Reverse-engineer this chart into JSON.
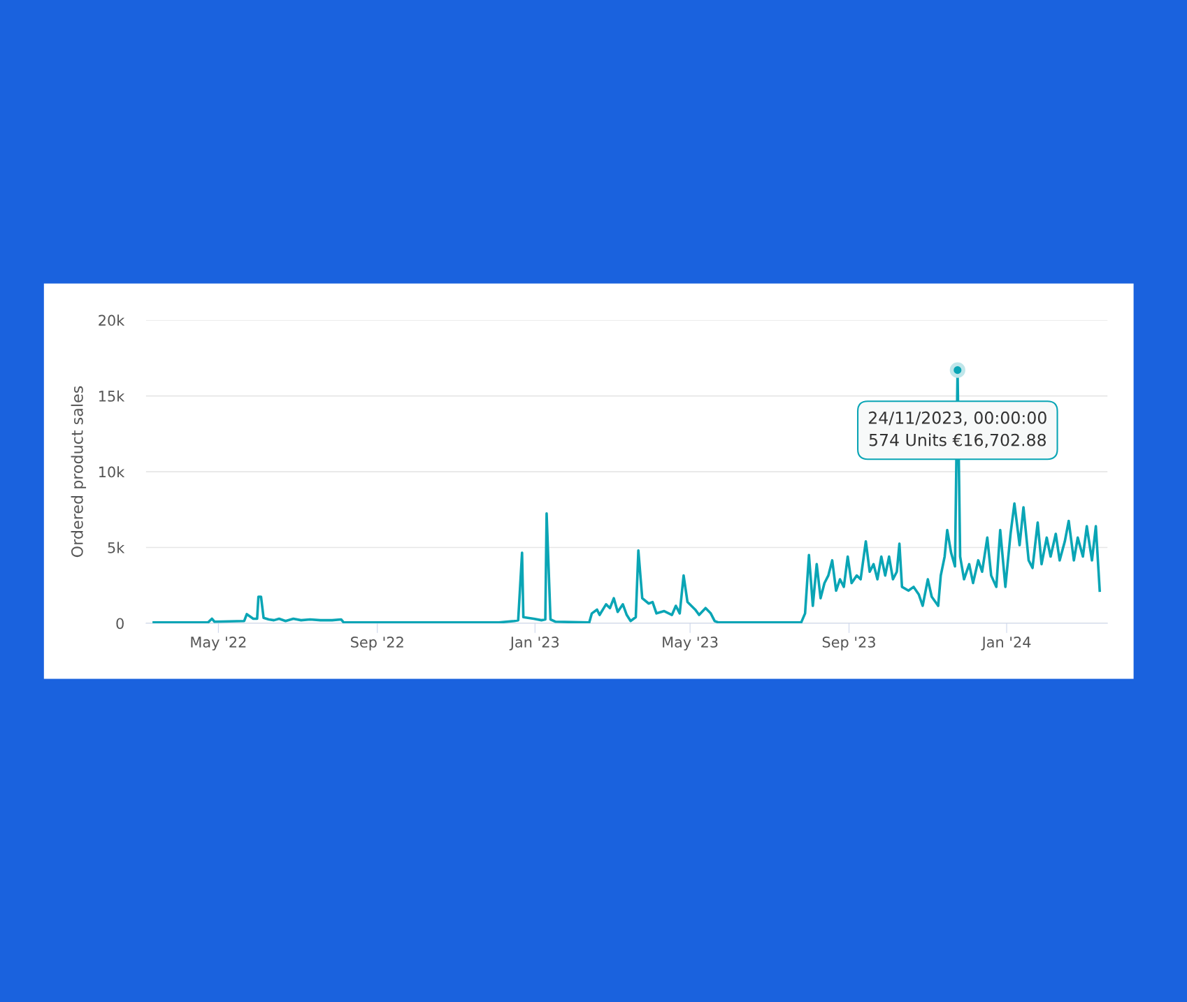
{
  "chart_data": {
    "type": "line",
    "ylabel": "Ordered product sales",
    "x": [
      "2022-03-12",
      "2022-04-23",
      "2022-04-26",
      "2022-04-28",
      "2022-05-21",
      "2022-05-23",
      "2022-05-28",
      "2022-05-31",
      "2022-06-01",
      "2022-06-03",
      "2022-06-05",
      "2022-06-09",
      "2022-06-13",
      "2022-06-17",
      "2022-06-22",
      "2022-06-28",
      "2022-07-04",
      "2022-07-11",
      "2022-07-19",
      "2022-07-28",
      "2022-08-04",
      "2022-08-06",
      "2022-12-04",
      "2022-12-16",
      "2022-12-19",
      "2022-12-22",
      "2022-12-23",
      "2022-12-31",
      "2023-01-06",
      "2023-01-09",
      "2023-01-10",
      "2023-01-13",
      "2023-01-17",
      "2023-02-12",
      "2023-02-14",
      "2023-02-18",
      "2023-02-20",
      "2023-02-25",
      "2023-02-28",
      "2023-03-03",
      "2023-03-06",
      "2023-03-10",
      "2023-03-13",
      "2023-03-16",
      "2023-03-20",
      "2023-03-22",
      "2023-03-25",
      "2023-03-30",
      "2023-04-02",
      "2023-04-05",
      "2023-04-11",
      "2023-04-17",
      "2023-04-20",
      "2023-04-23",
      "2023-04-26",
      "2023-04-29",
      "2023-05-05",
      "2023-05-08",
      "2023-05-13",
      "2023-05-17",
      "2023-05-20",
      "2023-05-23",
      "2023-07-16",
      "2023-07-26",
      "2023-07-29",
      "2023-08-01",
      "2023-08-04",
      "2023-08-07",
      "2023-08-10",
      "2023-08-13",
      "2023-08-16",
      "2023-08-19",
      "2023-08-22",
      "2023-08-25",
      "2023-08-28",
      "2023-08-31",
      "2023-09-03",
      "2023-09-07",
      "2023-09-10",
      "2023-09-14",
      "2023-09-17",
      "2023-09-20",
      "2023-09-23",
      "2023-09-26",
      "2023-09-29",
      "2023-10-02",
      "2023-10-05",
      "2023-10-08",
      "2023-10-10",
      "2023-10-12",
      "2023-10-17",
      "2023-10-21",
      "2023-10-25",
      "2023-10-28",
      "2023-11-01",
      "2023-11-04",
      "2023-11-09",
      "2023-11-11",
      "2023-11-14",
      "2023-11-16",
      "2023-11-19",
      "2023-11-22",
      "2023-11-24",
      "2023-11-26",
      "2023-11-29",
      "2023-12-03",
      "2023-12-06",
      "2023-12-10",
      "2023-12-13",
      "2023-12-17",
      "2023-12-20",
      "2023-12-24",
      "2023-12-27",
      "2023-12-31",
      "2024-01-04",
      "2024-01-07",
      "2024-01-11",
      "2024-01-14",
      "2024-01-18",
      "2024-01-21",
      "2024-01-25",
      "2024-01-28",
      "2024-02-01",
      "2024-02-04",
      "2024-02-08",
      "2024-02-11",
      "2024-02-15",
      "2024-02-18",
      "2024-02-22",
      "2024-02-25",
      "2024-02-29",
      "2024-03-03",
      "2024-03-07",
      "2024-03-10",
      "2024-03-13"
    ],
    "series": [
      {
        "color": "#0aa5b5",
        "values": [
          50,
          50,
          300,
          100,
          150,
          600,
          300,
          300,
          1750,
          1750,
          350,
          250,
          200,
          300,
          150,
          300,
          200,
          250,
          200,
          200,
          250,
          50,
          50,
          150,
          200,
          4650,
          400,
          300,
          200,
          250,
          7250,
          250,
          100,
          50,
          650,
          900,
          550,
          1250,
          1000,
          1650,
          750,
          1250,
          550,
          150,
          400,
          4800,
          1650,
          1300,
          1400,
          650,
          800,
          550,
          1150,
          650,
          3150,
          1400,
          900,
          550,
          1000,
          650,
          150,
          50,
          50,
          50,
          650,
          4500,
          1150,
          3900,
          1650,
          2650,
          3150,
          4150,
          2150,
          2900,
          2400,
          4400,
          2650,
          3150,
          2900,
          5400,
          3400,
          3900,
          2900,
          4400,
          3150,
          4400,
          2900,
          3400,
          5250,
          2400,
          2150,
          2400,
          1900,
          1150,
          2900,
          1750,
          1150,
          3150,
          4400,
          6150,
          4650,
          3750,
          16702.88,
          4400,
          2900,
          3900,
          2650,
          4150,
          3400,
          5650,
          3150,
          2400,
          6150,
          2400,
          5900,
          7900,
          5150,
          7650,
          4150,
          3650,
          6650,
          3900,
          5650,
          4400,
          5900,
          4150,
          5400,
          6750,
          4150,
          5650,
          4400,
          6400,
          4150,
          6400,
          2150
        ]
      }
    ],
    "xlim": [
      "2022-03-06",
      "2024-03-19"
    ],
    "xticks": [
      {
        "value": "2022-05-01",
        "label": "May '22"
      },
      {
        "value": "2022-09-01",
        "label": "Sep '22"
      },
      {
        "value": "2023-01-01",
        "label": "Jan '23"
      },
      {
        "value": "2023-05-01",
        "label": "May '23"
      },
      {
        "value": "2023-09-01",
        "label": "Sep '23"
      },
      {
        "value": "2024-01-01",
        "label": "Jan '24"
      }
    ],
    "ylim": [
      0,
      20000
    ],
    "yticks": [
      0,
      {
        "value": 5000,
        "label": "5k"
      },
      {
        "value": 10000,
        "label": "10k"
      },
      {
        "value": 15000,
        "label": "15k"
      },
      {
        "value": 20000,
        "label": "20k"
      }
    ],
    "grid": "y",
    "marker": "none",
    "line_style": "solid",
    "annotations": [
      {
        "text": "24/11/2023, 00:00:00\n574 Units €16,702.88",
        "x": "2023-11-24",
        "y": 16702.88
      }
    ]
  }
}
